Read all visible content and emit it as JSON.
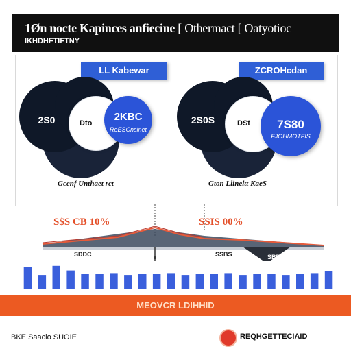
{
  "header": {
    "title": "1Øn nocte Kapinces anfiecine",
    "title_extra": "[ Othermact [ Oatyotioc",
    "subtitle": "IKHDHFTIFTNY"
  },
  "panels": [
    {
      "tag": "LL Kabewar",
      "dark_value": "2S0",
      "light_value": "Dto",
      "blue_value": "2KBC",
      "blue_subtext": "ReESCnsinet",
      "caption": "Gcenf Unthaet rct",
      "pct": "S$S CB 10%",
      "sub_label": "SDDC"
    },
    {
      "tag": "ZCROHcdan",
      "dark_value": "2S0S",
      "light_value": "DSt",
      "blue_value": "7S80",
      "blue_subtext": "FJOHMOTFIS",
      "caption": "Gton Llineltt KaeS",
      "pct": "SSIS 00%",
      "sub_label": "SSBS",
      "marker_label": "SBDS"
    }
  ],
  "bars": {
    "values": [
      0.85,
      0.55,
      0.9,
      0.72,
      0.58,
      0.6,
      0.62,
      0.55,
      0.58,
      0.6,
      0.62,
      0.55,
      0.6,
      0.58,
      0.62,
      0.55,
      0.6,
      0.58,
      0.55,
      0.6,
      0.62,
      0.7
    ],
    "color": "#3a5fdc"
  },
  "band_label": "MEOVCR LDIHHID",
  "footer": {
    "left_text": "BKE Saacio SUOIE",
    "right_text": "REQHGETTECIAID"
  },
  "colors": {
    "accent_blue": "#2b54d8",
    "accent_orange": "#ec5a22",
    "header_bg": "#101010"
  }
}
